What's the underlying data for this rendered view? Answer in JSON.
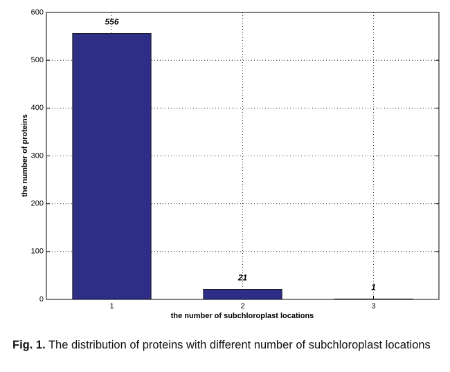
{
  "chart_data": {
    "type": "bar",
    "categories": [
      "1",
      "2",
      "3"
    ],
    "values": [
      556,
      21,
      1
    ],
    "color": "#2e2e87",
    "ylim": [
      0,
      600
    ],
    "yticks": [
      0,
      100,
      200,
      300,
      400,
      500,
      600
    ],
    "xlabel": "the number of subchloroplast locations",
    "ylabel": "the number of proteins",
    "grid": true,
    "caption_label": "Fig. 1.",
    "caption": "The distribution of proteins with different number of subchloroplast locations"
  }
}
